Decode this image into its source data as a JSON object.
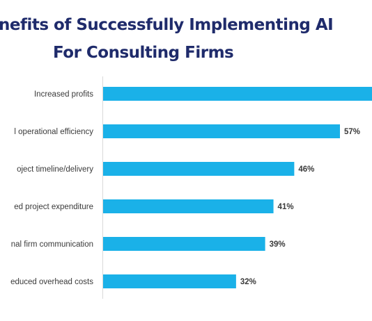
{
  "chart_data": {
    "type": "bar",
    "orientation": "horizontal",
    "title_lines": [
      "nefits of Successfully Implementing AI",
      "For Consulting Firms"
    ],
    "categories": [
      "Increased profits",
      "l operational efficiency",
      "oject timeline/delivery",
      "ed project expenditure",
      "nal firm communication",
      "educed overhead costs"
    ],
    "values": [
      null,
      57,
      46,
      41,
      39,
      32
    ],
    "labels": [
      "",
      "57%",
      "46%",
      "41%",
      "39%",
      "32%"
    ],
    "xlim": [
      0,
      100
    ],
    "grid": false,
    "legend": "none",
    "bar_color": "#1ab1e8",
    "title_color": "#1f2b6b"
  }
}
